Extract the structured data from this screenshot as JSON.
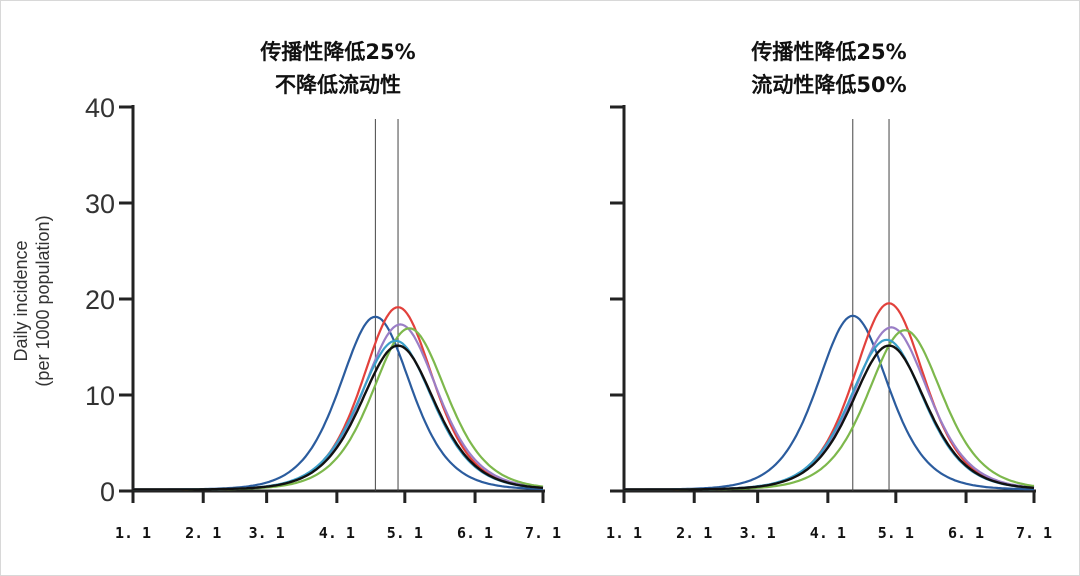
{
  "chart_data": [
    {
      "type": "line",
      "title": [
        "传播性降低25%",
        "不降低流动性"
      ],
      "ylabel": [
        "Daily incidence",
        "(per 1000 population)"
      ],
      "xlabel": "",
      "x_ticks": [
        "1.1",
        "2.1",
        "3.1",
        "4.1",
        "5.1",
        "6.1",
        "7.1"
      ],
      "y_ticks": [
        "0",
        "10",
        "20",
        "30",
        "40"
      ],
      "ylim": [
        0,
        40
      ],
      "xlim": [
        "1.1",
        "7.1"
      ],
      "grid": false,
      "reference_lines": [
        "4.18",
        "4.28"
      ],
      "series": [
        {
          "color": "#2b5c9e",
          "peak_date": "4.18",
          "peak_value": 18.0,
          "width_days": 21
        },
        {
          "color": "#e2413c",
          "peak_date": "4.28",
          "peak_value": 19.0,
          "width_days": 21
        },
        {
          "color": "#9a7ec6",
          "peak_date": "4.29",
          "peak_value": 17.2,
          "width_days": 22
        },
        {
          "color": "#7db84c",
          "peak_date": "5.3",
          "peak_value": 16.8,
          "width_days": 22
        },
        {
          "color": "#3b9fc9",
          "peak_date": "4.27",
          "peak_value": 15.5,
          "width_days": 22
        },
        {
          "color": "#111111",
          "peak_date": "4.28",
          "peak_value": 15.0,
          "width_days": 22
        }
      ]
    },
    {
      "type": "line",
      "title": [
        "传播性降低25%",
        "流动性降低50%"
      ],
      "x_ticks": [
        "1.1",
        "2.1",
        "3.1",
        "4.1",
        "5.1",
        "6.1",
        "7.1"
      ],
      "y_ticks": [
        "0",
        "10",
        "20",
        "30",
        "40"
      ],
      "ylim": [
        0,
        40
      ],
      "xlim": [
        "1.1",
        "7.1"
      ],
      "grid": false,
      "reference_lines": [
        "4.12",
        "4.28"
      ],
      "series": [
        {
          "color": "#2b5c9e",
          "peak_date": "4.12",
          "peak_value": 18.1,
          "width_days": 21
        },
        {
          "color": "#e2413c",
          "peak_date": "4.28",
          "peak_value": 19.4,
          "width_days": 21
        },
        {
          "color": "#9a7ec6",
          "peak_date": "4.29",
          "peak_value": 16.9,
          "width_days": 22
        },
        {
          "color": "#7db84c",
          "peak_date": "5.5",
          "peak_value": 16.6,
          "width_days": 22
        },
        {
          "color": "#3b9fc9",
          "peak_date": "4.27",
          "peak_value": 15.6,
          "width_days": 22
        },
        {
          "color": "#111111",
          "peak_date": "4.28",
          "peak_value": 15.0,
          "width_days": 22
        }
      ]
    }
  ]
}
